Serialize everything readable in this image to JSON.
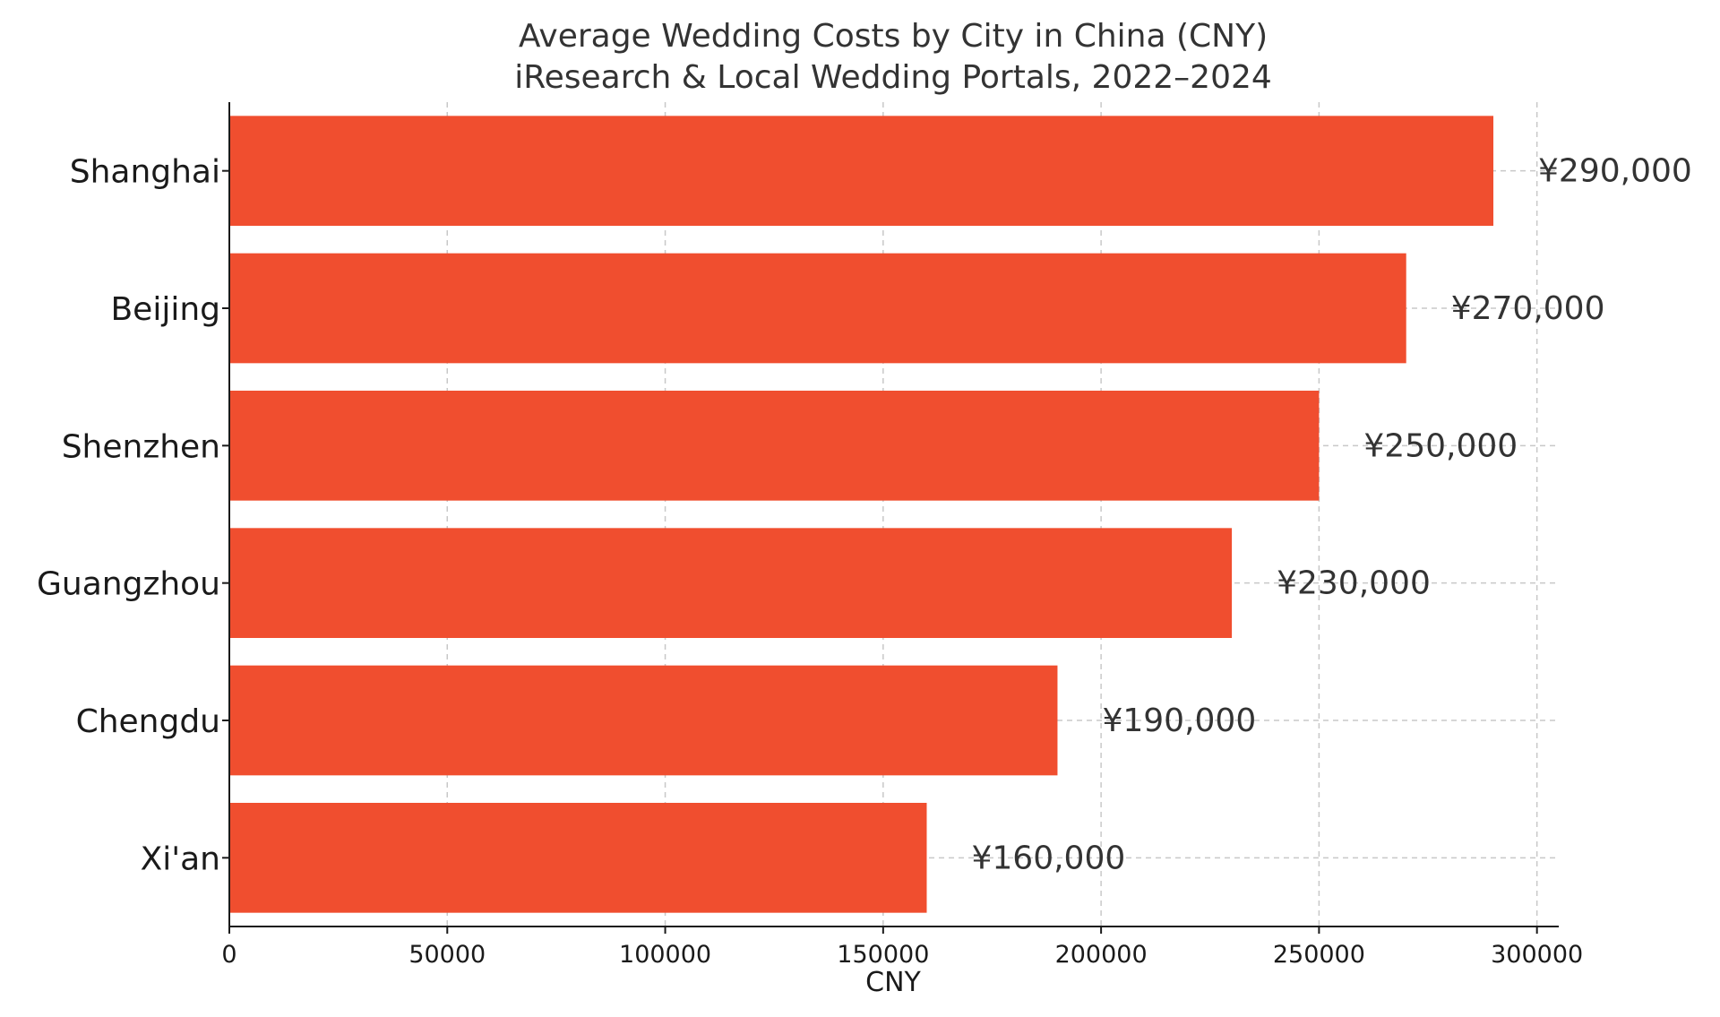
{
  "chart_data": {
    "type": "bar",
    "orientation": "horizontal",
    "title": "Average Wedding Costs by City in China (CNY)",
    "subtitle": "iResearch & Local Wedding Portals, 2022–2024",
    "categories": [
      "Shanghai",
      "Beijing",
      "Shenzhen",
      "Guangzhou",
      "Chengdu",
      "Xi'an"
    ],
    "values": [
      290000,
      270000,
      250000,
      230000,
      190000,
      160000
    ],
    "data_labels": [
      "¥290,000",
      "¥270,000",
      "¥250,000",
      "¥230,000",
      "¥190,000",
      "¥160,000"
    ],
    "xlabel": "CNY",
    "ylabel": "",
    "xlim": [
      0,
      305000
    ],
    "xticks": [
      0,
      50000,
      100000,
      150000,
      200000,
      250000,
      300000
    ],
    "xtick_labels": [
      "0",
      "50000",
      "100000",
      "150000",
      "200000",
      "250000",
      "300000"
    ],
    "grid": true,
    "bar_color": "#f04e2f"
  }
}
